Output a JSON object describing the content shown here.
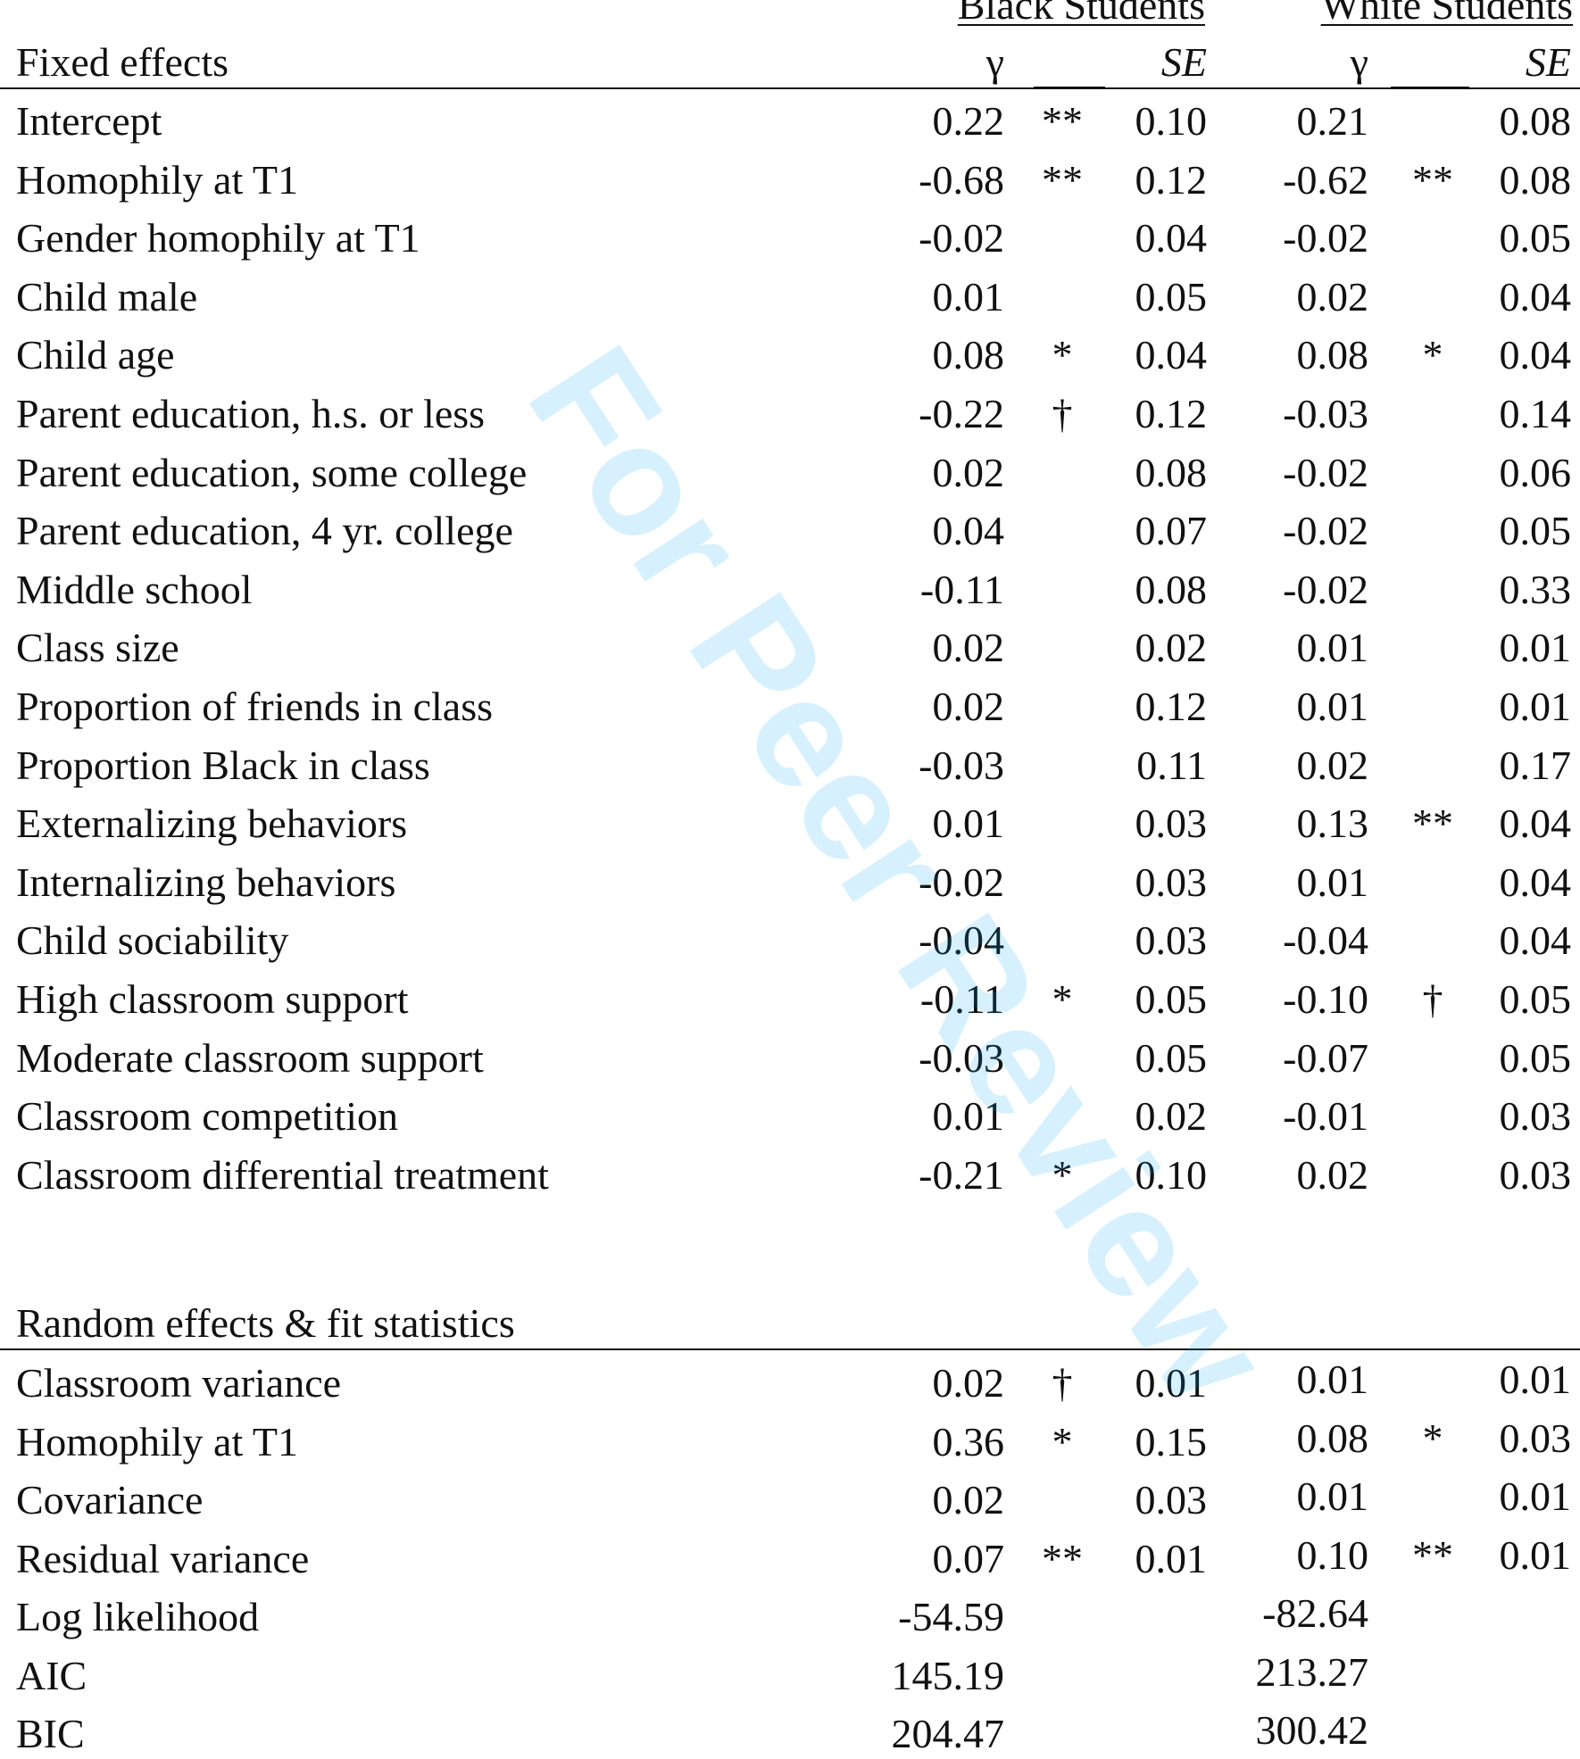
{
  "header": {
    "black_group": "Black Students",
    "white_group": "White Students",
    "fixed_effects_label": "Fixed effects",
    "gamma": "γ",
    "se": "SE"
  },
  "fixed_effects": [
    {
      "label": "Intercept",
      "b_gamma": "0.22",
      "b_sig": "**",
      "b_se": "0.10",
      "w_gamma": "0.21",
      "w_sig": "",
      "w_se": "0.08"
    },
    {
      "label": "Homophily at T1",
      "b_gamma": "-0.68",
      "b_sig": "**",
      "b_se": "0.12",
      "w_gamma": "-0.62",
      "w_sig": "**",
      "w_se": "0.08"
    },
    {
      "label": "Gender homophily at T1",
      "b_gamma": "-0.02",
      "b_sig": "",
      "b_se": "0.04",
      "w_gamma": "-0.02",
      "w_sig": "",
      "w_se": "0.05"
    },
    {
      "label": "Child male",
      "b_gamma": "0.01",
      "b_sig": "",
      "b_se": "0.05",
      "w_gamma": "0.02",
      "w_sig": "",
      "w_se": "0.04"
    },
    {
      "label": "Child age",
      "b_gamma": "0.08",
      "b_sig": "*",
      "b_se": "0.04",
      "w_gamma": "0.08",
      "w_sig": "*",
      "w_se": "0.04"
    },
    {
      "label": "Parent education, h.s. or less",
      "b_gamma": "-0.22",
      "b_sig": "†",
      "b_se": "0.12",
      "w_gamma": "-0.03",
      "w_sig": "",
      "w_se": "0.14"
    },
    {
      "label": "Parent education, some college",
      "b_gamma": "0.02",
      "b_sig": "",
      "b_se": "0.08",
      "w_gamma": "-0.02",
      "w_sig": "",
      "w_se": "0.06"
    },
    {
      "label": "Parent education, 4 yr. college",
      "b_gamma": "0.04",
      "b_sig": "",
      "b_se": "0.07",
      "w_gamma": "-0.02",
      "w_sig": "",
      "w_se": "0.05"
    },
    {
      "label": "Middle school",
      "b_gamma": "-0.11",
      "b_sig": "",
      "b_se": "0.08",
      "w_gamma": "-0.02",
      "w_sig": "",
      "w_se": "0.33"
    },
    {
      "label": "Class size",
      "b_gamma": "0.02",
      "b_sig": "",
      "b_se": "0.02",
      "w_gamma": "0.01",
      "w_sig": "",
      "w_se": "0.01"
    },
    {
      "label": "Proportion of friends in class",
      "b_gamma": "0.02",
      "b_sig": "",
      "b_se": "0.12",
      "w_gamma": "0.01",
      "w_sig": "",
      "w_se": "0.01"
    },
    {
      "label": "Proportion Black in class",
      "b_gamma": "-0.03",
      "b_sig": "",
      "b_se": "0.11",
      "w_gamma": "0.02",
      "w_sig": "",
      "w_se": "0.17"
    },
    {
      "label": "Externalizing behaviors",
      "b_gamma": "0.01",
      "b_sig": "",
      "b_se": "0.03",
      "w_gamma": "0.13",
      "w_sig": "**",
      "w_se": "0.04"
    },
    {
      "label": "Internalizing behaviors",
      "b_gamma": "-0.02",
      "b_sig": "",
      "b_se": "0.03",
      "w_gamma": "0.01",
      "w_sig": "",
      "w_se": "0.04"
    },
    {
      "label": "Child sociability",
      "b_gamma": "-0.04",
      "b_sig": "",
      "b_se": "0.03",
      "w_gamma": "-0.04",
      "w_sig": "",
      "w_se": "0.04"
    },
    {
      "label": "High classroom support",
      "b_gamma": "-0.11",
      "b_sig": "*",
      "b_se": "0.05",
      "w_gamma": "-0.10",
      "w_sig": "†",
      "w_se": "0.05"
    },
    {
      "label": "Moderate classroom support",
      "b_gamma": "-0.03",
      "b_sig": "",
      "b_se": "0.05",
      "w_gamma": "-0.07",
      "w_sig": "",
      "w_se": "0.05"
    },
    {
      "label": "Classroom competition",
      "b_gamma": "0.01",
      "b_sig": "",
      "b_se": "0.02",
      "w_gamma": "-0.01",
      "w_sig": "",
      "w_se": "0.03"
    },
    {
      "label": "Classroom differential treatment",
      "b_gamma": "-0.21",
      "b_sig": "*",
      "b_se": "0.10",
      "w_gamma": "0.02",
      "w_sig": "",
      "w_se": "0.03"
    }
  ],
  "random_section_label": "Random effects & fit statistics",
  "random_effects": [
    {
      "label": "Classroom variance",
      "b_gamma": "0.02",
      "b_sig": "†",
      "b_se": "0.01",
      "w_gamma": "0.01",
      "w_sig": "",
      "w_se": "0.01"
    },
    {
      "label": "Homophily at T1",
      "b_gamma": "0.36",
      "b_sig": "*",
      "b_se": "0.15",
      "w_gamma": "0.08",
      "w_sig": "*",
      "w_se": "0.03"
    },
    {
      "label": "Covariance",
      "b_gamma": "0.02",
      "b_sig": "",
      "b_se": "0.03",
      "w_gamma": "0.01",
      "w_sig": "",
      "w_se": "0.01"
    },
    {
      "label": "Residual variance",
      "b_gamma": "0.07",
      "b_sig": "**",
      "b_se": "0.01",
      "w_gamma": "0.10",
      "w_sig": "**",
      "w_se": "0.01"
    }
  ],
  "fit_statistics": [
    {
      "label": "Log likelihood",
      "b_value": "-54.59",
      "w_value": "-82.64"
    },
    {
      "label": "AIC",
      "b_value": "145.19",
      "w_value": "213.27"
    },
    {
      "label": "BIC",
      "b_value": "204.47",
      "w_value": "300.42"
    }
  ],
  "watermark": "For Peer Review"
}
